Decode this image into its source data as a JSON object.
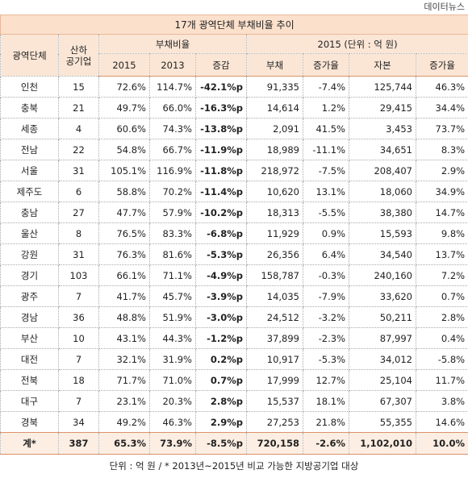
{
  "source": "데이터뉴스",
  "title": "17개 광역단체 부채비율 추이",
  "header": {
    "region": "광역단체",
    "companies": "산하 공기업",
    "debt_ratio": "부채비율",
    "debt_ratio_cols": [
      "2015",
      "2013",
      "증감"
    ],
    "group_2015": "2015 (단위 : 억 원)",
    "cols_2015": [
      "부채",
      "증가율",
      "자본",
      "증가율"
    ]
  },
  "rows": [
    [
      "인천",
      "15",
      "72.6%",
      "114.7%",
      "-42.1%p",
      "91,335",
      "-7.4%",
      "125,744",
      "46.3%"
    ],
    [
      "충북",
      "21",
      "49.7%",
      "66.0%",
      "-16.3%p",
      "14,614",
      "1.2%",
      "29,415",
      "34.4%"
    ],
    [
      "세종",
      "4",
      "60.6%",
      "74.3%",
      "-13.8%p",
      "2,091",
      "41.5%",
      "3,453",
      "73.7%"
    ],
    [
      "전남",
      "22",
      "54.8%",
      "66.7%",
      "-11.9%p",
      "18,989",
      "-11.1%",
      "34,651",
      "8.3%"
    ],
    [
      "서울",
      "31",
      "105.1%",
      "116.9%",
      "-11.8%p",
      "218,972",
      "-7.5%",
      "208,407",
      "2.9%"
    ],
    [
      "제주도",
      "6",
      "58.8%",
      "70.2%",
      "-11.4%p",
      "10,620",
      "13.1%",
      "18,060",
      "34.9%"
    ],
    [
      "충남",
      "27",
      "47.7%",
      "57.9%",
      "-10.2%p",
      "18,313",
      "-5.5%",
      "38,380",
      "14.7%"
    ],
    [
      "울산",
      "8",
      "76.5%",
      "83.3%",
      "-6.8%p",
      "11,929",
      "0.9%",
      "15,593",
      "9.8%"
    ],
    [
      "강원",
      "31",
      "76.3%",
      "81.6%",
      "-5.3%p",
      "26,356",
      "6.4%",
      "34,540",
      "13.7%"
    ],
    [
      "경기",
      "103",
      "66.1%",
      "71.1%",
      "-4.9%p",
      "158,787",
      "-0.3%",
      "240,160",
      "7.2%"
    ],
    [
      "광주",
      "7",
      "41.7%",
      "45.7%",
      "-3.9%p",
      "14,035",
      "-7.9%",
      "33,620",
      "0.7%"
    ],
    [
      "경남",
      "36",
      "48.8%",
      "51.9%",
      "-3.0%p",
      "24,512",
      "-3.2%",
      "50,211",
      "2.8%"
    ],
    [
      "부산",
      "10",
      "43.1%",
      "44.3%",
      "-1.2%p",
      "37,899",
      "-2.3%",
      "87,997",
      "0.4%"
    ],
    [
      "대전",
      "7",
      "32.1%",
      "31.9%",
      "0.2%p",
      "10,917",
      "-5.3%",
      "34,012",
      "-5.8%"
    ],
    [
      "전북",
      "18",
      "71.7%",
      "71.0%",
      "0.7%p",
      "17,999",
      "12.7%",
      "25,104",
      "11.7%"
    ],
    [
      "대구",
      "7",
      "23.1%",
      "20.3%",
      "2.8%p",
      "15,537",
      "18.1%",
      "67,307",
      "3.8%"
    ],
    [
      "경북",
      "34",
      "49.2%",
      "46.3%",
      "2.9%p",
      "27,253",
      "21.8%",
      "55,355",
      "14.6%"
    ]
  ],
  "total": [
    "계*",
    "387",
    "65.3%",
    "73.9%",
    "-8.5%p",
    "720,158",
    "-2.6%",
    "1,102,010",
    "10.0%"
  ],
  "footnote": "단위 : 억 원 / * 2013년~2015년 비교 가능한 지방공기업 대상"
}
